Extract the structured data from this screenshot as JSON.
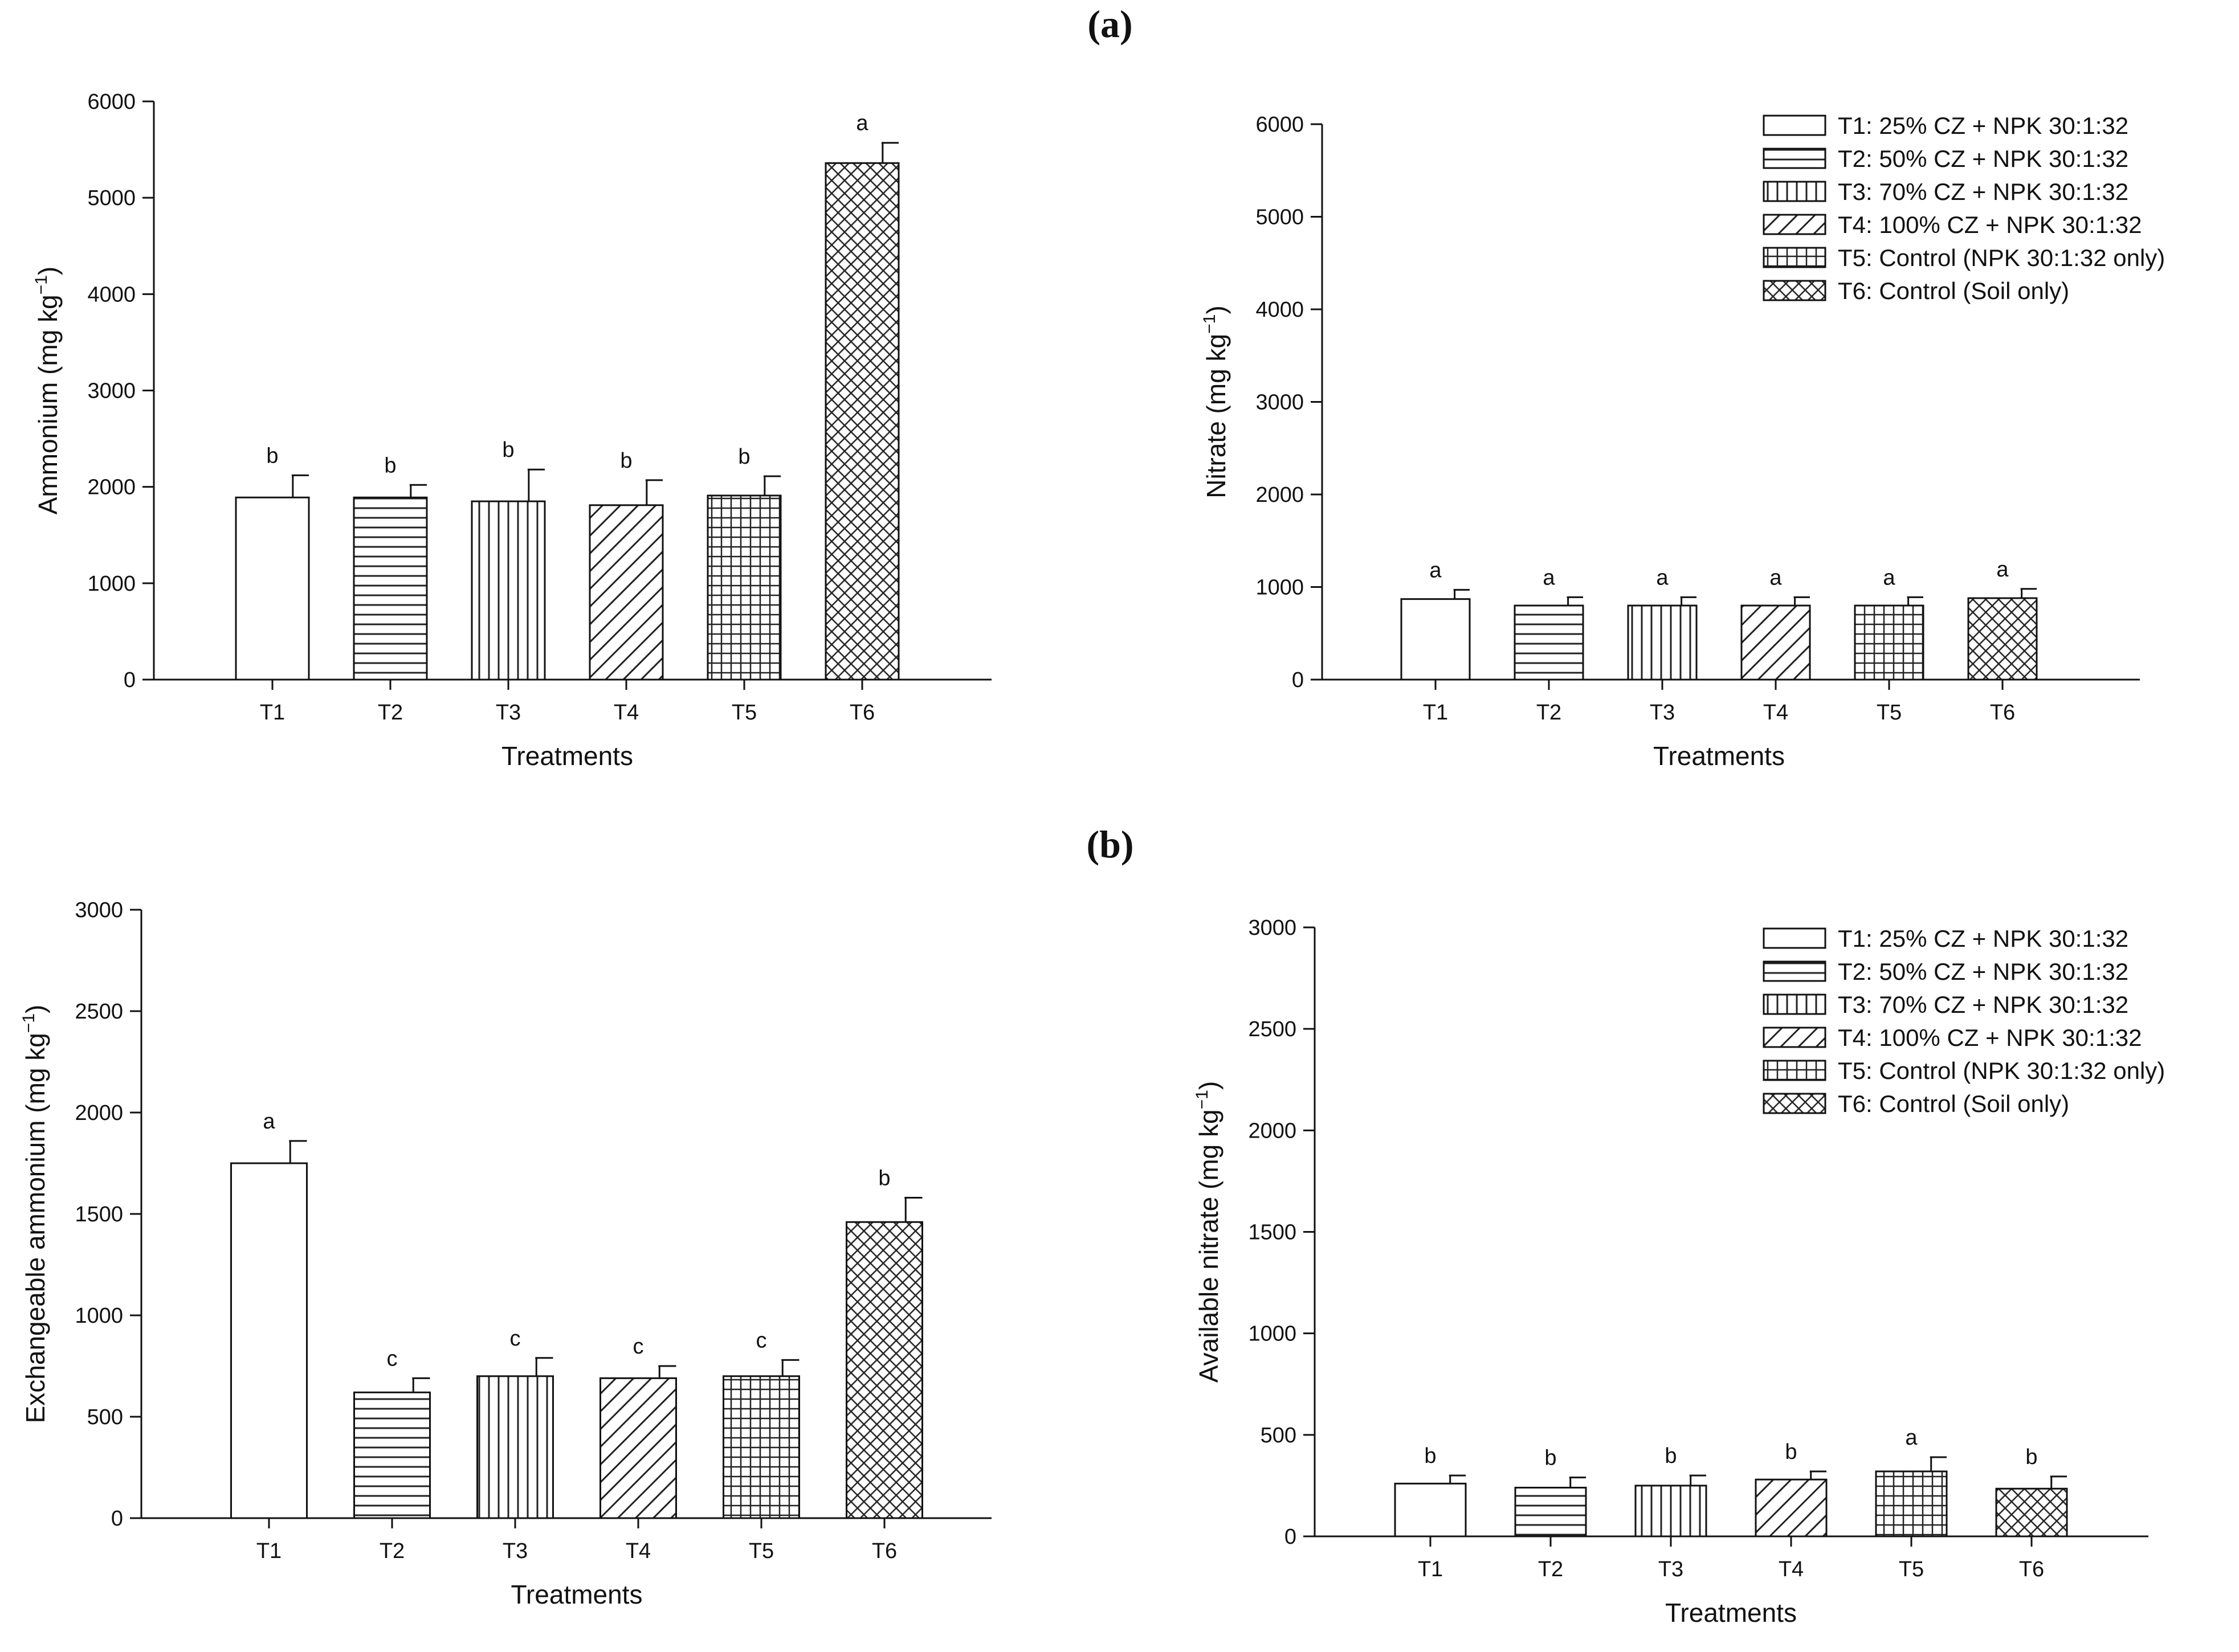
{
  "panel_labels": {
    "a": "(a)",
    "b": "(b)"
  },
  "legend_items": [
    {
      "label": "T1: 25% CZ  +  NPK 30:1:32",
      "pattern": "pat-open"
    },
    {
      "label": "T2: 50% CZ  +  NPK 30:1:32",
      "pattern": "pat-hlines"
    },
    {
      "label": "T3: 70% CZ  +  NPK 30:1:32",
      "pattern": "pat-vlines"
    },
    {
      "label": "T4: 100% CZ  +  NPK 30:1:32",
      "pattern": "pat-diag"
    },
    {
      "label": "T5: Control (NPK 30:1:32 only)",
      "pattern": "pat-grid"
    },
    {
      "label": "T6: Control (Soil only)",
      "pattern": "pat-cross"
    }
  ],
  "chart_data": [
    {
      "id": "a-ammonium",
      "type": "bar",
      "panel": "a",
      "title": "",
      "xlabel": "Treatments",
      "ylabel": "Ammonium (mg kg",
      "ylabel_sup": "−1",
      "ylabel_close": ")",
      "categories": [
        "T1",
        "T2",
        "T3",
        "T4",
        "T5",
        "T6"
      ],
      "values": [
        1890,
        1890,
        1850,
        1810,
        1910,
        5360
      ],
      "errors": [
        230,
        130,
        330,
        260,
        200,
        210
      ],
      "letters": [
        "b",
        "b",
        "b",
        "b",
        "b",
        "a"
      ],
      "ylim": [
        0,
        6000
      ],
      "yticks": [
        "0",
        "1000",
        "2000",
        "3000",
        "4000",
        "5000",
        "6000"
      ],
      "legend": false
    },
    {
      "id": "a-nitrate",
      "type": "bar",
      "panel": "a",
      "title": "",
      "xlabel": "Treatments",
      "ylabel": "Nitrate (mg kg",
      "ylabel_sup": "−1",
      "ylabel_close": ")",
      "categories": [
        "T1",
        "T2",
        "T3",
        "T4",
        "T5",
        "T6"
      ],
      "values": [
        870,
        800,
        800,
        800,
        800,
        880
      ],
      "errors": [
        100,
        90,
        90,
        90,
        90,
        100
      ],
      "letters": [
        "a",
        "a",
        "a",
        "a",
        "a",
        "a"
      ],
      "ylim": [
        0,
        6000
      ],
      "yticks": [
        "0",
        "1000",
        "2000",
        "3000",
        "4000",
        "5000",
        "6000"
      ],
      "legend": true
    },
    {
      "id": "b-exch-ammonium",
      "type": "bar",
      "panel": "b",
      "title": "",
      "xlabel": "Treatments",
      "ylabel": "Exchangeable ammonium (mg kg",
      "ylabel_sup": "−1",
      "ylabel_close": ")",
      "categories": [
        "T1",
        "T2",
        "T3",
        "T4",
        "T5",
        "T6"
      ],
      "values": [
        1750,
        620,
        700,
        690,
        700,
        1460
      ],
      "errors": [
        110,
        70,
        90,
        60,
        80,
        120
      ],
      "letters": [
        "a",
        "c",
        "c",
        "c",
        "c",
        "b"
      ],
      "ylim": [
        0,
        3000
      ],
      "yticks": [
        "0",
        "500",
        "1000",
        "1500",
        "2000",
        "2500",
        "3000"
      ],
      "legend": false
    },
    {
      "id": "b-avail-nitrate",
      "type": "bar",
      "panel": "b",
      "title": "",
      "xlabel": "Treatments",
      "ylabel": "Available nitrate (mg kg",
      "ylabel_sup": "−1",
      "ylabel_close": ")",
      "categories": [
        "T1",
        "T2",
        "T3",
        "T4",
        "T5",
        "T6"
      ],
      "values": [
        260,
        240,
        250,
        280,
        320,
        235
      ],
      "errors": [
        40,
        50,
        50,
        40,
        70,
        60
      ],
      "letters": [
        "b",
        "b",
        "b",
        "b",
        "a",
        "b"
      ],
      "ylim": [
        0,
        3000
      ],
      "yticks": [
        "0",
        "500",
        "1000",
        "1500",
        "2000",
        "2500",
        "3000"
      ],
      "legend": true
    }
  ]
}
